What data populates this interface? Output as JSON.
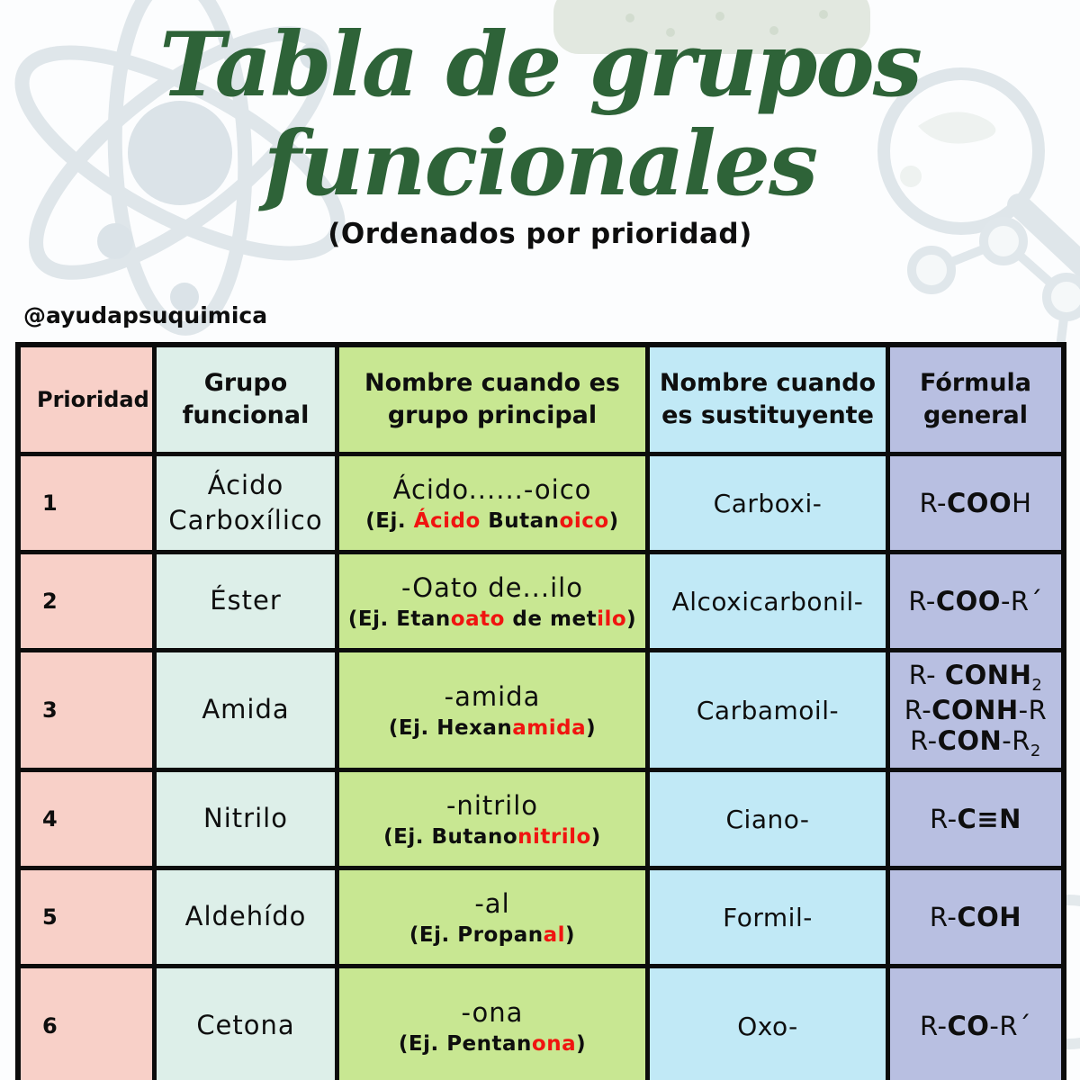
{
  "colors": {
    "pink": "#f8d0c8",
    "mint": "#ddefe9",
    "green": "#c8e792",
    "blue": "#c1e9f6",
    "purple": "#b8bfe1",
    "red": "#f01410",
    "title-green": "#2e6338",
    "ink": "#0e0e0e",
    "doodle": "#dfe6ea",
    "doodle-green": "#e2e8e0"
  },
  "header": {
    "title_line1": "Tabla de grupos",
    "title_line2": "funcionales",
    "subtitle": "(Ordenados por prioridad)",
    "handle": "@ayudapsuquimica"
  },
  "table": {
    "headers": [
      "Prioridad",
      "Grupo\nfuncional",
      "Nombre cuando es\ngrupo principal",
      "Nombre cuando\nes sustituyente",
      "Fórmula\ngeneral"
    ],
    "rows": [
      {
        "priority": "1",
        "group": "Ácido\nCarboxílico",
        "principal_name": "Ácido......-oico",
        "principal_example": [
          {
            "t": "(Ej. "
          },
          {
            "t": "Ácido ",
            "red": true
          },
          {
            "t": "Butan"
          },
          {
            "t": "oico",
            "red": true
          },
          {
            "t": ")"
          }
        ],
        "substituent": "Carboxi-",
        "formula_lines": [
          [
            {
              "t": "R-"
            },
            {
              "t": "COO",
              "b": true
            },
            {
              "t": "H"
            }
          ]
        ]
      },
      {
        "priority": "2",
        "group": "Éster",
        "principal_name": "-Oato de...ilo",
        "principal_example": [
          {
            "t": "(Ej. Etan"
          },
          {
            "t": "oato",
            "red": true
          },
          {
            "t": " de met"
          },
          {
            "t": "ilo",
            "red": true
          },
          {
            "t": ")"
          }
        ],
        "substituent": "Alcoxicarbonil-",
        "formula_lines": [
          [
            {
              "t": "R-"
            },
            {
              "t": "COO",
              "b": true
            },
            {
              "t": "-R´"
            }
          ]
        ]
      },
      {
        "priority": "3",
        "group": "Amida",
        "principal_name": "-amida",
        "principal_example": [
          {
            "t": "(Ej. Hexan"
          },
          {
            "t": "amida",
            "red": true
          },
          {
            "t": ")"
          }
        ],
        "substituent": "Carbamoil-",
        "formula_lines": [
          [
            {
              "t": "R- "
            },
            {
              "t": "CONH",
              "b": true
            },
            {
              "t": "2",
              "sub": true
            }
          ],
          [
            {
              "t": "R-"
            },
            {
              "t": "CONH",
              "b": true
            },
            {
              "t": "-R"
            }
          ],
          [
            {
              "t": "R-"
            },
            {
              "t": "CON",
              "b": true
            },
            {
              "t": "-R"
            },
            {
              "t": "2",
              "sub": true
            }
          ]
        ]
      },
      {
        "priority": "4",
        "group": "Nitrilo",
        "principal_name": "-nitrilo",
        "principal_example": [
          {
            "t": "(Ej. Butano"
          },
          {
            "t": "nitrilo",
            "red": true
          },
          {
            "t": ")"
          }
        ],
        "substituent": "Ciano-",
        "formula_lines": [
          [
            {
              "t": "R-"
            },
            {
              "t": "C≡N",
              "b": true
            }
          ]
        ]
      },
      {
        "priority": "5",
        "group": "Aldehído",
        "principal_name": "-al",
        "principal_example": [
          {
            "t": "(Ej. Propan"
          },
          {
            "t": "al",
            "red": true
          },
          {
            "t": ")"
          }
        ],
        "substituent": "Formil-",
        "formula_lines": [
          [
            {
              "t": "R-"
            },
            {
              "t": "COH",
              "b": true
            }
          ]
        ]
      },
      {
        "priority": "6",
        "group": "Cetona",
        "principal_name": "-ona",
        "principal_example": [
          {
            "t": "(Ej. Pentan"
          },
          {
            "t": "ona",
            "red": true
          },
          {
            "t": ")"
          }
        ],
        "substituent": "Oxo-",
        "formula_lines": [
          [
            {
              "t": "R-"
            },
            {
              "t": "CO",
              "b": true
            },
            {
              "t": "-R´"
            }
          ]
        ]
      }
    ]
  }
}
